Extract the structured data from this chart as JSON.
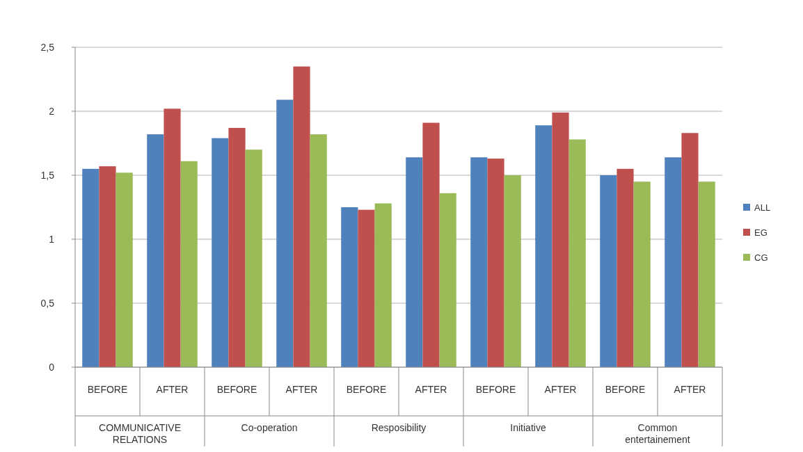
{
  "chart_data": {
    "type": "bar",
    "categories": [
      "BEFORE",
      "AFTER",
      "BEFORE",
      "AFTER",
      "BEFORE",
      "AFTER",
      "BEFORE",
      "AFTER",
      "BEFORE",
      "AFTER"
    ],
    "annotations": [
      "COMMUNICATIVE RELATIONS",
      "Co-operation",
      "Resposibility",
      "Initiative",
      "Common entertainement"
    ],
    "series": [
      {
        "name": "ALL",
        "color": "#4f81bd",
        "values": [
          1.55,
          1.82,
          1.79,
          2.09,
          1.25,
          1.64,
          1.64,
          1.89,
          1.5,
          1.64
        ]
      },
      {
        "name": "EG",
        "color": "#c0504d",
        "values": [
          1.57,
          2.02,
          1.87,
          2.35,
          1.23,
          1.91,
          1.63,
          1.99,
          1.55,
          1.83
        ]
      },
      {
        "name": "CG",
        "color": "#9bbb59",
        "values": [
          1.52,
          1.61,
          1.7,
          1.82,
          1.28,
          1.36,
          1.5,
          1.78,
          1.45,
          1.45
        ]
      }
    ],
    "ylim": [
      0,
      2.5
    ],
    "yticks": [
      {
        "value": 0,
        "label": "0"
      },
      {
        "value": 0.5,
        "label": "0,5"
      },
      {
        "value": 1,
        "label": "1"
      },
      {
        "value": 1.5,
        "label": "1,5"
      },
      {
        "value": 2,
        "label": "2"
      },
      {
        "value": 2.5,
        "label": "2,5"
      }
    ],
    "grid": "y",
    "legend": "right"
  }
}
